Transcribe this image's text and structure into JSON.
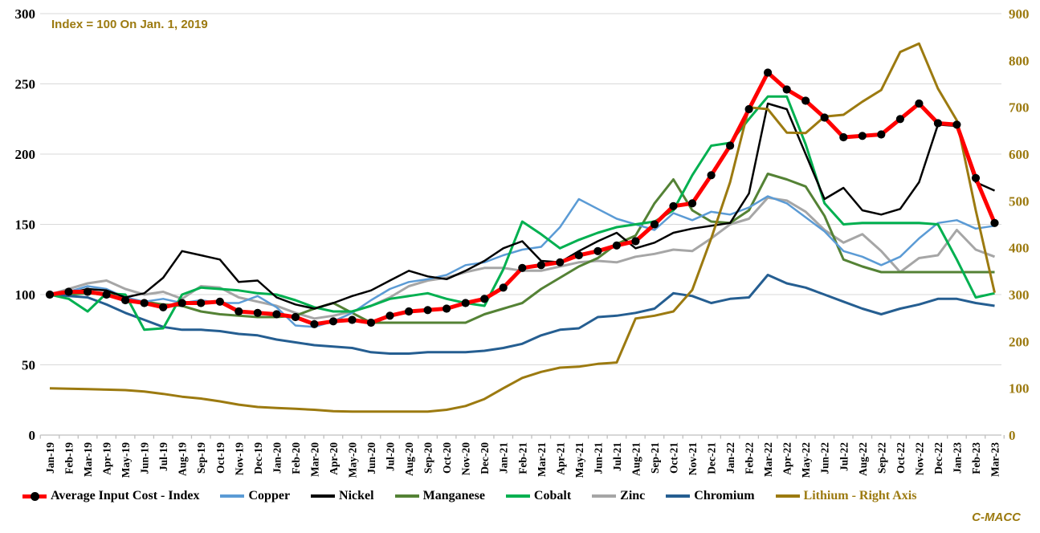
{
  "annotation": "Index = 100 On Jan. 1, 2019",
  "watermark": "C-MACC",
  "colors": {
    "gold": "#9C7A10",
    "grid": "#D9D9D9",
    "axis_line": "#BFBFBF",
    "left_label": "#000000"
  },
  "chart_data": {
    "type": "line",
    "title": "",
    "annotation": "Index = 100 On Jan. 1, 2019",
    "legend_position": "bottom",
    "grid": "horizontal",
    "categories": [
      "Jan-19",
      "Feb-19",
      "Mar-19",
      "Apr-19",
      "May-19",
      "Jun-19",
      "Jul-19",
      "Aug-19",
      "Sep-19",
      "Oct-19",
      "Nov-19",
      "Dec-19",
      "Jan-20",
      "Feb-20",
      "Mar-20",
      "Apr-20",
      "May-20",
      "Jun-20",
      "Jul-20",
      "Aug-20",
      "Sep-20",
      "Oct-20",
      "Nov-20",
      "Dec-20",
      "Jan-21",
      "Feb-21",
      "Mar-21",
      "Apr-21",
      "May-21",
      "Jun-21",
      "Jul-21",
      "Aug-21",
      "Sep-21",
      "Oct-21",
      "Nov-21",
      "Dec-21",
      "Jan-22",
      "Feb-22",
      "Mar-22",
      "Apr-22",
      "May-22",
      "Jun-22",
      "Jul-22",
      "Aug-22",
      "Sep-22",
      "Oct-22",
      "Nov-22",
      "Dec-22",
      "Jan-23",
      "Feb-23",
      "Mar-23"
    ],
    "left_axis": {
      "ticks": [
        300,
        250,
        200,
        150,
        100,
        50,
        0
      ],
      "range": [
        0,
        300
      ]
    },
    "right_axis": {
      "ticks": [
        900,
        800,
        700,
        600,
        500,
        400,
        300,
        200,
        100,
        0
      ],
      "range": [
        0,
        900
      ]
    },
    "series": [
      {
        "name": "Average Input Cost - Index",
        "axis": "left",
        "color": "#FF0000",
        "width": 5,
        "marker": "black-dot",
        "values": [
          100,
          102,
          102,
          100,
          96,
          94,
          91,
          94,
          94,
          95,
          88,
          87,
          86,
          84,
          79,
          81,
          82,
          80,
          85,
          88,
          89,
          90,
          94,
          97,
          105,
          119,
          121,
          123,
          128,
          131,
          135,
          138,
          150,
          163,
          165,
          185,
          206,
          232,
          258,
          246,
          238,
          226,
          212,
          213,
          214,
          225,
          236,
          222,
          221,
          183,
          151
        ]
      },
      {
        "name": "Copper",
        "axis": "left",
        "color": "#5B9BD5",
        "width": 2.5,
        "values": [
          100,
          102,
          106,
          104,
          98,
          95,
          97,
          94,
          96,
          94,
          94,
          99,
          91,
          78,
          77,
          81,
          87,
          96,
          104,
          109,
          111,
          114,
          121,
          123,
          128,
          132,
          134,
          148,
          168,
          161,
          154,
          150,
          146,
          158,
          153,
          159,
          157,
          162,
          170,
          165,
          155,
          145,
          131,
          127,
          121,
          127,
          140,
          151,
          153,
          147,
          149
        ]
      },
      {
        "name": "Nickel",
        "axis": "left",
        "color": "#000000",
        "width": 2.5,
        "values": [
          100,
          101,
          104,
          103,
          98,
          101,
          112,
          131,
          128,
          125,
          109,
          110,
          98,
          93,
          90,
          94,
          99,
          103,
          110,
          117,
          113,
          111,
          117,
          124,
          133,
          138,
          124,
          123,
          131,
          138,
          144,
          133,
          137,
          144,
          147,
          149,
          151,
          172,
          236,
          232,
          200,
          168,
          176,
          160,
          157,
          161,
          180,
          221,
          220,
          180,
          174
        ]
      },
      {
        "name": "Manganese",
        "axis": "left",
        "color": "#548235",
        "width": 3,
        "values": [
          100,
          100,
          101,
          100,
          97,
          95,
          93,
          92,
          88,
          86,
          85,
          84,
          84,
          85,
          90,
          94,
          87,
          80,
          80,
          80,
          80,
          80,
          80,
          86,
          90,
          94,
          104,
          112,
          120,
          126,
          136,
          142,
          165,
          182,
          160,
          152,
          151,
          160,
          186,
          182,
          177,
          156,
          125,
          120,
          116,
          116,
          116,
          116,
          116,
          116,
          116
        ]
      },
      {
        "name": "Cobalt",
        "axis": "left",
        "color": "#00B050",
        "width": 3,
        "values": [
          100,
          97,
          88,
          101,
          100,
          75,
          76,
          100,
          105,
          104,
          103,
          101,
          100,
          96,
          91,
          88,
          88,
          92,
          97,
          99,
          101,
          97,
          94,
          92,
          118,
          152,
          143,
          133,
          139,
          144,
          148,
          150,
          152,
          160,
          185,
          206,
          208,
          225,
          241,
          241,
          207,
          165,
          150,
          151,
          151,
          151,
          151,
          150,
          125,
          98,
          101
        ]
      },
      {
        "name": "Zinc",
        "axis": "left",
        "color": "#A6A6A6",
        "width": 3,
        "values": [
          100,
          104,
          108,
          110,
          104,
          100,
          102,
          97,
          106,
          105,
          98,
          95,
          92,
          87,
          83,
          85,
          88,
          92,
          98,
          106,
          110,
          112,
          116,
          119,
          119,
          117,
          117,
          120,
          123,
          124,
          123,
          127,
          129,
          132,
          131,
          140,
          150,
          154,
          169,
          167,
          159,
          146,
          137,
          143,
          131,
          116,
          126,
          128,
          146,
          132,
          127
        ]
      },
      {
        "name": "Chromium",
        "axis": "left",
        "color": "#255E91",
        "width": 3,
        "values": [
          100,
          99,
          98,
          93,
          87,
          82,
          77,
          75,
          75,
          74,
          72,
          71,
          68,
          66,
          64,
          63,
          62,
          59,
          58,
          58,
          59,
          59,
          59,
          60,
          62,
          65,
          71,
          75,
          76,
          84,
          85,
          87,
          90,
          101,
          99,
          94,
          97,
          98,
          114,
          108,
          105,
          100,
          95,
          90,
          86,
          90,
          93,
          97,
          97,
          94,
          92
        ]
      },
      {
        "name": "Lithium - Right Axis",
        "axis": "right",
        "color": "#9C7A10",
        "width": 3,
        "label_color": "#9C7A10",
        "values": [
          100,
          99,
          98,
          97,
          96,
          93,
          88,
          82,
          78,
          72,
          65,
          60,
          58,
          56,
          54,
          51,
          50,
          50,
          50,
          50,
          50,
          54,
          62,
          77,
          100,
          122,
          135,
          144,
          146,
          152,
          155,
          249,
          255,
          264,
          310,
          420,
          540,
          700,
          696,
          646,
          645,
          680,
          684,
          712,
          737,
          818,
          836,
          740,
          672,
          480,
          304
        ]
      }
    ]
  }
}
